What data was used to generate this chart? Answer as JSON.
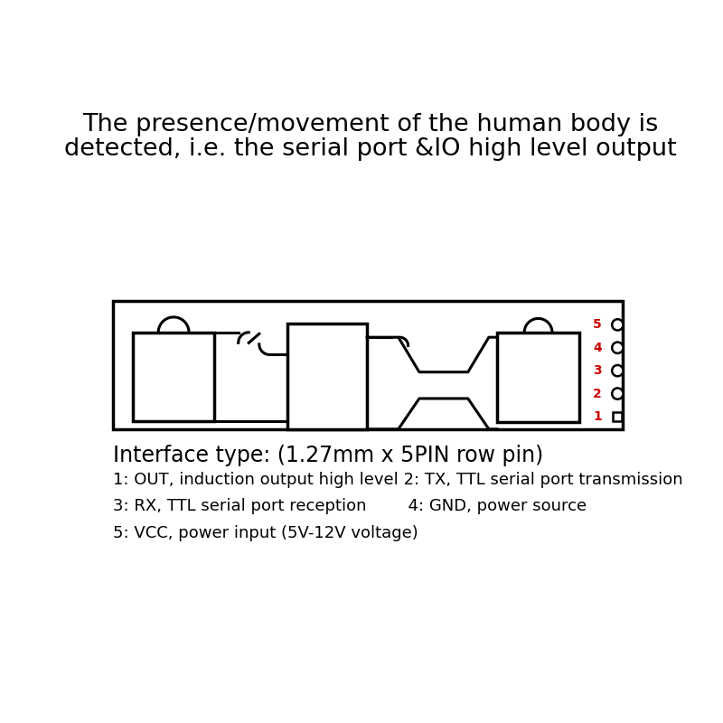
{
  "bg_color": "#ffffff",
  "title_line1": "The presence/movement of the human body is",
  "title_line2": "detected, i.e. the serial port &IO high level output",
  "title_fontsize": 19.5,
  "title_color": "#000000",
  "interface_title": "Interface type: (1.27mm x 5PIN row pin)",
  "interface_title_fontsize": 17,
  "desc_lines": [
    "1: OUT, induction output high level 2: TX, TTL serial port transmission",
    "3: RX, TTL serial port reception        4: GND, power source",
    "5: VCC, power input (5V-12V voltage)"
  ],
  "desc_fontsize": 13,
  "pin_numbers": [
    "5",
    "4",
    "3",
    "2",
    "1"
  ],
  "pin_color": "#cc0000",
  "line_color": "#000000"
}
